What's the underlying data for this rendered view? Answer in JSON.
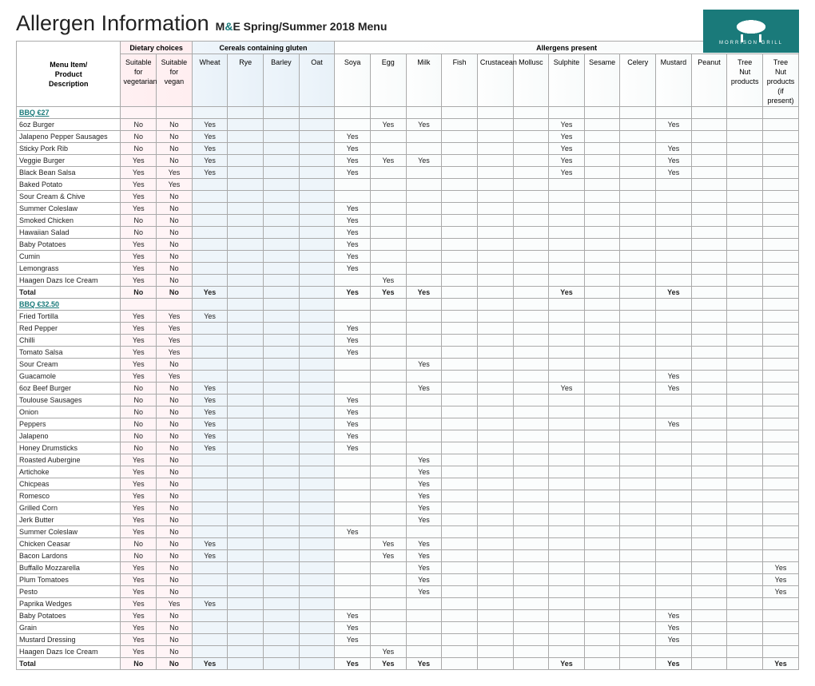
{
  "logo_label": "MORRISON GRILL",
  "title": "Allergen Information",
  "subtitle_prefix": "M",
  "subtitle_amp": "&",
  "subtitle_rest": "E Spring/Summer 2018 Menu",
  "group_headers": {
    "item": "Menu Item/\nProduct\nDescription",
    "dietary": "Dietary choices",
    "cereals": "Cereals containing gluten",
    "allergens": "Allergens present"
  },
  "columns": [
    {
      "id": "veg",
      "group": "d",
      "label": "Suitable for vegetarian"
    },
    {
      "id": "vgn",
      "group": "d",
      "label": "Suitable for vegan"
    },
    {
      "id": "wht",
      "group": "c",
      "label": "Wheat"
    },
    {
      "id": "rye",
      "group": "c",
      "label": "Rye"
    },
    {
      "id": "bar",
      "group": "c",
      "label": "Barley"
    },
    {
      "id": "oat",
      "group": "c",
      "label": "Oat"
    },
    {
      "id": "soy",
      "group": "a",
      "label": "Soya"
    },
    {
      "id": "egg",
      "group": "a",
      "label": "Egg"
    },
    {
      "id": "mlk",
      "group": "a",
      "label": "Milk"
    },
    {
      "id": "fsh",
      "group": "a",
      "label": "Fish"
    },
    {
      "id": "cru",
      "group": "a",
      "label": "Crustacean"
    },
    {
      "id": "mol",
      "group": "a",
      "label": "Mollusc"
    },
    {
      "id": "sul",
      "group": "a",
      "label": "Sulphite"
    },
    {
      "id": "ses",
      "group": "a",
      "label": "Sesame"
    },
    {
      "id": "cel",
      "group": "a",
      "label": "Celery"
    },
    {
      "id": "mus",
      "group": "a",
      "label": "Mustard"
    },
    {
      "id": "pea",
      "group": "a",
      "label": "Peanut"
    },
    {
      "id": "tnp",
      "group": "a",
      "label": "Tree Nut products"
    },
    {
      "id": "tni",
      "group": "a",
      "label": "Tree Nut products (if present)"
    }
  ],
  "rows": [
    {
      "type": "section",
      "item": "BBQ €27"
    },
    {
      "item": "6oz Burger",
      "v": {
        "veg": "No",
        "vgn": "No",
        "wht": "Yes",
        "egg": "Yes",
        "mlk": "Yes",
        "sul": "Yes",
        "mus": "Yes"
      }
    },
    {
      "item": "Jalapeno Pepper Sausages",
      "v": {
        "veg": "No",
        "vgn": "No",
        "wht": "Yes",
        "soy": "Yes",
        "sul": "Yes"
      }
    },
    {
      "item": "Sticky Pork Rib",
      "v": {
        "veg": "No",
        "vgn": "No",
        "wht": "Yes",
        "soy": "Yes",
        "sul": "Yes",
        "mus": "Yes"
      }
    },
    {
      "item": "Veggie Burger",
      "v": {
        "veg": "Yes",
        "vgn": "No",
        "wht": "Yes",
        "soy": "Yes",
        "egg": "Yes",
        "mlk": "Yes",
        "sul": "Yes",
        "mus": "Yes"
      }
    },
    {
      "item": "Black Bean Salsa",
      "v": {
        "veg": "Yes",
        "vgn": "Yes",
        "wht": "Yes",
        "soy": "Yes",
        "sul": "Yes",
        "mus": "Yes"
      }
    },
    {
      "item": "Baked Potato",
      "v": {
        "veg": "Yes",
        "vgn": "Yes"
      }
    },
    {
      "item": "Sour Cream & Chive",
      "v": {
        "veg": "Yes",
        "vgn": "No"
      }
    },
    {
      "item": "Summer Coleslaw",
      "v": {
        "veg": "Yes",
        "vgn": "No",
        "soy": "Yes"
      }
    },
    {
      "item": "Smoked Chicken",
      "v": {
        "veg": "No",
        "vgn": "No",
        "soy": "Yes"
      }
    },
    {
      "item": "Hawaiian Salad",
      "v": {
        "veg": "No",
        "vgn": "No",
        "soy": "Yes"
      }
    },
    {
      "item": "Baby Potatoes",
      "v": {
        "veg": "Yes",
        "vgn": "No",
        "soy": "Yes"
      }
    },
    {
      "item": "Cumin",
      "v": {
        "veg": "Yes",
        "vgn": "No",
        "soy": "Yes"
      }
    },
    {
      "item": "Lemongrass",
      "v": {
        "veg": "Yes",
        "vgn": "No",
        "soy": "Yes"
      }
    },
    {
      "item": "Haagen Dazs Ice Cream",
      "v": {
        "veg": "Yes",
        "vgn": "No",
        "egg": "Yes"
      }
    },
    {
      "type": "total",
      "item": "Total",
      "v": {
        "veg": "No",
        "vgn": "No",
        "wht": "Yes",
        "soy": "Yes",
        "egg": "Yes",
        "mlk": "Yes",
        "sul": "Yes",
        "mus": "Yes"
      }
    },
    {
      "type": "section",
      "item": "BBQ €32.50"
    },
    {
      "item": "Fried Tortilla",
      "v": {
        "veg": "Yes",
        "vgn": "Yes",
        "wht": "Yes"
      }
    },
    {
      "item": "Red Pepper",
      "v": {
        "veg": "Yes",
        "vgn": "Yes",
        "soy": "Yes"
      }
    },
    {
      "item": "Chilli",
      "v": {
        "veg": "Yes",
        "vgn": "Yes",
        "soy": "Yes"
      }
    },
    {
      "item": "Tomato Salsa",
      "v": {
        "veg": "Yes",
        "vgn": "Yes",
        "soy": "Yes"
      }
    },
    {
      "item": "Sour Cream",
      "v": {
        "veg": "Yes",
        "vgn": "No",
        "mlk": "Yes"
      }
    },
    {
      "item": "Guacamole",
      "v": {
        "veg": "Yes",
        "vgn": "Yes",
        "mus": "Yes"
      }
    },
    {
      "item": "6oz Beef Burger",
      "v": {
        "veg": "No",
        "vgn": "No",
        "wht": "Yes",
        "mlk": "Yes",
        "sul": "Yes",
        "mus": "Yes"
      }
    },
    {
      "item": "Toulouse Sausages",
      "v": {
        "veg": "No",
        "vgn": "No",
        "wht": "Yes",
        "soy": "Yes"
      }
    },
    {
      "item": "Onion",
      "v": {
        "veg": "No",
        "vgn": "No",
        "wht": "Yes",
        "soy": "Yes"
      }
    },
    {
      "item": "Peppers",
      "v": {
        "veg": "No",
        "vgn": "No",
        "wht": "Yes",
        "soy": "Yes",
        "mus": "Yes"
      }
    },
    {
      "item": "Jalapeno",
      "v": {
        "veg": "No",
        "vgn": "No",
        "wht": "Yes",
        "soy": "Yes"
      }
    },
    {
      "item": "Honey Drumsticks",
      "v": {
        "veg": "No",
        "vgn": "No",
        "wht": "Yes",
        "soy": "Yes"
      }
    },
    {
      "item": "Roasted Aubergine",
      "v": {
        "veg": "Yes",
        "vgn": "No",
        "mlk": "Yes"
      }
    },
    {
      "item": "Artichoke",
      "v": {
        "veg": "Yes",
        "vgn": "No",
        "mlk": "Yes"
      }
    },
    {
      "item": "Chicpeas",
      "v": {
        "veg": "Yes",
        "vgn": "No",
        "mlk": "Yes"
      }
    },
    {
      "item": "Romesco",
      "v": {
        "veg": "Yes",
        "vgn": "No",
        "mlk": "Yes"
      }
    },
    {
      "item": "Grilled Corn",
      "v": {
        "veg": "Yes",
        "vgn": "No",
        "mlk": "Yes"
      }
    },
    {
      "item": "Jerk Butter",
      "v": {
        "veg": "Yes",
        "vgn": "No",
        "mlk": "Yes"
      }
    },
    {
      "item": "Summer Coleslaw",
      "v": {
        "veg": "Yes",
        "vgn": "No",
        "soy": "Yes"
      }
    },
    {
      "item": "Chicken Ceasar",
      "v": {
        "veg": "No",
        "vgn": "No",
        "wht": "Yes",
        "egg": "Yes",
        "mlk": "Yes"
      }
    },
    {
      "item": "Bacon Lardons",
      "v": {
        "veg": "No",
        "vgn": "No",
        "wht": "Yes",
        "egg": "Yes",
        "mlk": "Yes"
      }
    },
    {
      "item": "Buffallo Mozzarella",
      "v": {
        "veg": "Yes",
        "vgn": "No",
        "mlk": "Yes",
        "tni": "Yes"
      }
    },
    {
      "item": "Plum Tomatoes",
      "v": {
        "veg": "Yes",
        "vgn": "No",
        "mlk": "Yes",
        "tni": "Yes"
      }
    },
    {
      "item": "Pesto",
      "v": {
        "veg": "Yes",
        "vgn": "No",
        "mlk": "Yes",
        "tni": "Yes"
      }
    },
    {
      "item": "Paprika Wedges",
      "v": {
        "veg": "Yes",
        "vgn": "Yes",
        "wht": "Yes"
      }
    },
    {
      "item": "Baby Potatoes",
      "v": {
        "veg": "Yes",
        "vgn": "No",
        "soy": "Yes",
        "mus": "Yes"
      }
    },
    {
      "item": "Grain",
      "v": {
        "veg": "Yes",
        "vgn": "No",
        "soy": "Yes",
        "mus": "Yes"
      }
    },
    {
      "item": "Mustard Dressing",
      "v": {
        "veg": "Yes",
        "vgn": "No",
        "soy": "Yes",
        "mus": "Yes"
      }
    },
    {
      "item": "Haagen Dazs Ice Cream",
      "v": {
        "veg": "Yes",
        "vgn": "No",
        "egg": "Yes"
      }
    },
    {
      "type": "total",
      "item": "Total",
      "v": {
        "veg": "No",
        "vgn": "No",
        "wht": "Yes",
        "soy": "Yes",
        "egg": "Yes",
        "mlk": "Yes",
        "sul": "Yes",
        "mus": "Yes",
        "tni": "Yes"
      }
    }
  ]
}
